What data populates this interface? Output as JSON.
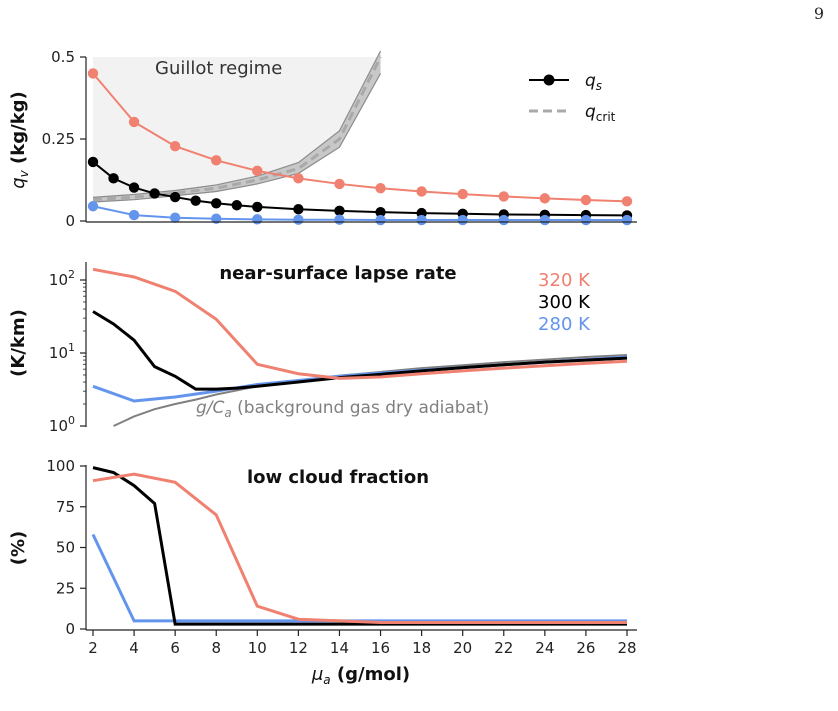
{
  "page_number": "9",
  "colors": {
    "k320": "#f08070",
    "k300": "#000000",
    "k280": "#6495ed",
    "qcrit": "#a9a9a9",
    "adiabat": "#808080",
    "shade": "#f2f2f2"
  },
  "chart_data": [
    {
      "type": "line",
      "panel": "top",
      "x": [
        2,
        4,
        6,
        8,
        10,
        12,
        14,
        16,
        18,
        20,
        22,
        24,
        26,
        28
      ],
      "ylabel_main": "q",
      "ylabel_sub": "v",
      "ylabel_rest": " (kg/kg)",
      "yticks": [
        "0",
        "0.25",
        "0.5"
      ],
      "ylim": [
        0,
        0.5
      ],
      "annotation": "Guillot regime",
      "legend": [
        {
          "name": "q",
          "sub": "s",
          "style": "dots"
        },
        {
          "name": "q",
          "sub": "crit",
          "style": "dashed"
        }
      ],
      "series": [
        {
          "temp": "320 K",
          "color": "#f08070",
          "values": [
            0.45,
            0.302,
            0.228,
            0.185,
            0.153,
            0.13,
            0.113,
            0.1,
            0.09,
            0.082,
            0.075,
            0.069,
            0.064,
            0.06
          ]
        },
        {
          "temp": "300 K",
          "color": "#000000",
          "x": [
            2,
            3,
            4,
            5,
            6,
            7,
            8,
            9,
            10,
            12,
            14,
            16,
            18,
            20,
            22,
            24,
            26,
            28
          ],
          "values": [
            0.18,
            0.13,
            0.102,
            0.084,
            0.073,
            0.062,
            0.054,
            0.048,
            0.043,
            0.036,
            0.031,
            0.027,
            0.024,
            0.022,
            0.02,
            0.019,
            0.018,
            0.017
          ]
        },
        {
          "temp": "280 K",
          "color": "#6495ed",
          "values": [
            0.045,
            0.018,
            0.01,
            0.007,
            0.005,
            0.004,
            0.004,
            0.003,
            0.003,
            0.003,
            0.003,
            0.003,
            0.003,
            0.003
          ]
        }
      ],
      "qcrit": {
        "x": [
          2,
          4,
          6,
          8,
          10,
          12,
          14,
          16
        ],
        "mid": [
          0.065,
          0.073,
          0.085,
          0.1,
          0.125,
          0.16,
          0.25,
          0.5
        ],
        "lo": [
          0.058,
          0.065,
          0.077,
          0.09,
          0.113,
          0.145,
          0.225,
          0.45
        ],
        "hi": [
          0.072,
          0.081,
          0.093,
          0.11,
          0.137,
          0.178,
          0.275,
          0.55
        ]
      }
    },
    {
      "type": "line",
      "panel": "middle",
      "title": "near-surface lapse rate",
      "x": [
        2,
        3,
        4,
        5,
        6,
        7,
        8,
        9,
        10,
        12,
        14,
        16,
        18,
        20,
        22,
        24,
        26,
        28
      ],
      "ylabel": "(K/km)",
      "yscale": "log",
      "ylim": [
        1,
        150
      ],
      "yticks": [
        {
          "base": "10",
          "exp": "0"
        },
        {
          "base": "10",
          "exp": "1"
        },
        {
          "base": "10",
          "exp": "2"
        }
      ],
      "legend_labels": [
        "320 K",
        "300 K",
        "280 K"
      ],
      "series": [
        {
          "name": "320 K",
          "color": "#f08070",
          "x": [
            2,
            4,
            6,
            8,
            10,
            12,
            14,
            16,
            18,
            20,
            22,
            24,
            26,
            28
          ],
          "values": [
            140,
            110,
            70,
            29,
            7,
            5.2,
            4.5,
            4.7,
            5.2,
            5.7,
            6.2,
            6.7,
            7.2,
            7.7
          ]
        },
        {
          "name": "300 K",
          "color": "#000000",
          "x": [
            2,
            3,
            4,
            5,
            6,
            7,
            8,
            9,
            10,
            12,
            14,
            16,
            18,
            20,
            22,
            24,
            26,
            28
          ],
          "values": [
            37,
            25,
            15,
            6.5,
            4.8,
            3.2,
            3.2,
            3.3,
            3.5,
            4.0,
            4.6,
            5.1,
            5.7,
            6.3,
            6.9,
            7.5,
            8.0,
            8.5
          ]
        },
        {
          "name": "280 K",
          "color": "#6495ed",
          "x": [
            2,
            4,
            6,
            8,
            10,
            12,
            14,
            16,
            18,
            20,
            22,
            24,
            26,
            28
          ],
          "values": [
            3.5,
            2.2,
            2.5,
            3.0,
            3.7,
            4.2,
            4.8,
            5.3,
            5.8,
            6.3,
            6.9,
            7.5,
            8.1,
            8.8
          ]
        }
      ],
      "adiabat": {
        "label_main": "g/C",
        "label_sub": "a",
        "label_rest": " (background gas dry adiabat)",
        "x": [
          3,
          4,
          5,
          6,
          7,
          8,
          10,
          12,
          14,
          16,
          18,
          20,
          22,
          24,
          26,
          28
        ],
        "values": [
          1.0,
          1.35,
          1.7,
          2.0,
          2.3,
          2.7,
          3.5,
          4.2,
          4.9,
          5.5,
          6.2,
          6.8,
          7.5,
          8.1,
          8.8,
          9.4
        ]
      }
    },
    {
      "type": "line",
      "panel": "bottom",
      "title": "low cloud fraction",
      "ylabel": "(%)",
      "ylim": [
        0,
        100
      ],
      "yticks": [
        "0",
        "25",
        "50",
        "75",
        "100"
      ],
      "xticks": [
        "2",
        "4",
        "6",
        "8",
        "10",
        "12",
        "14",
        "16",
        "18",
        "20",
        "22",
        "24",
        "26",
        "28"
      ],
      "xlabel_main": "μ",
      "xlabel_sub": "a",
      "xlabel_rest": " (g/mol)",
      "series": [
        {
          "name": "320 K",
          "color": "#f08070",
          "x": [
            2,
            4,
            6,
            8,
            10,
            12,
            14,
            16,
            18,
            20,
            22,
            24,
            26,
            28
          ],
          "values": [
            91,
            95,
            90,
            70,
            14,
            6,
            5,
            4,
            4,
            4,
            4,
            4,
            4,
            4
          ]
        },
        {
          "name": "300 K",
          "color": "#000000",
          "x": [
            2,
            3,
            4,
            5,
            6,
            8,
            10,
            12,
            14,
            16,
            18,
            20,
            22,
            24,
            26,
            28
          ],
          "values": [
            99,
            96,
            88,
            77,
            3,
            3,
            3,
            3,
            3,
            3,
            3,
            3,
            3,
            3,
            3,
            3
          ]
        },
        {
          "name": "280 K",
          "color": "#6495ed",
          "x": [
            2,
            4,
            6,
            8,
            10,
            12,
            14,
            16,
            18,
            20,
            22,
            24,
            26,
            28
          ],
          "values": [
            58,
            5,
            5,
            5,
            5,
            5,
            5,
            5,
            5,
            5,
            5,
            5,
            5,
            5
          ]
        }
      ]
    }
  ]
}
